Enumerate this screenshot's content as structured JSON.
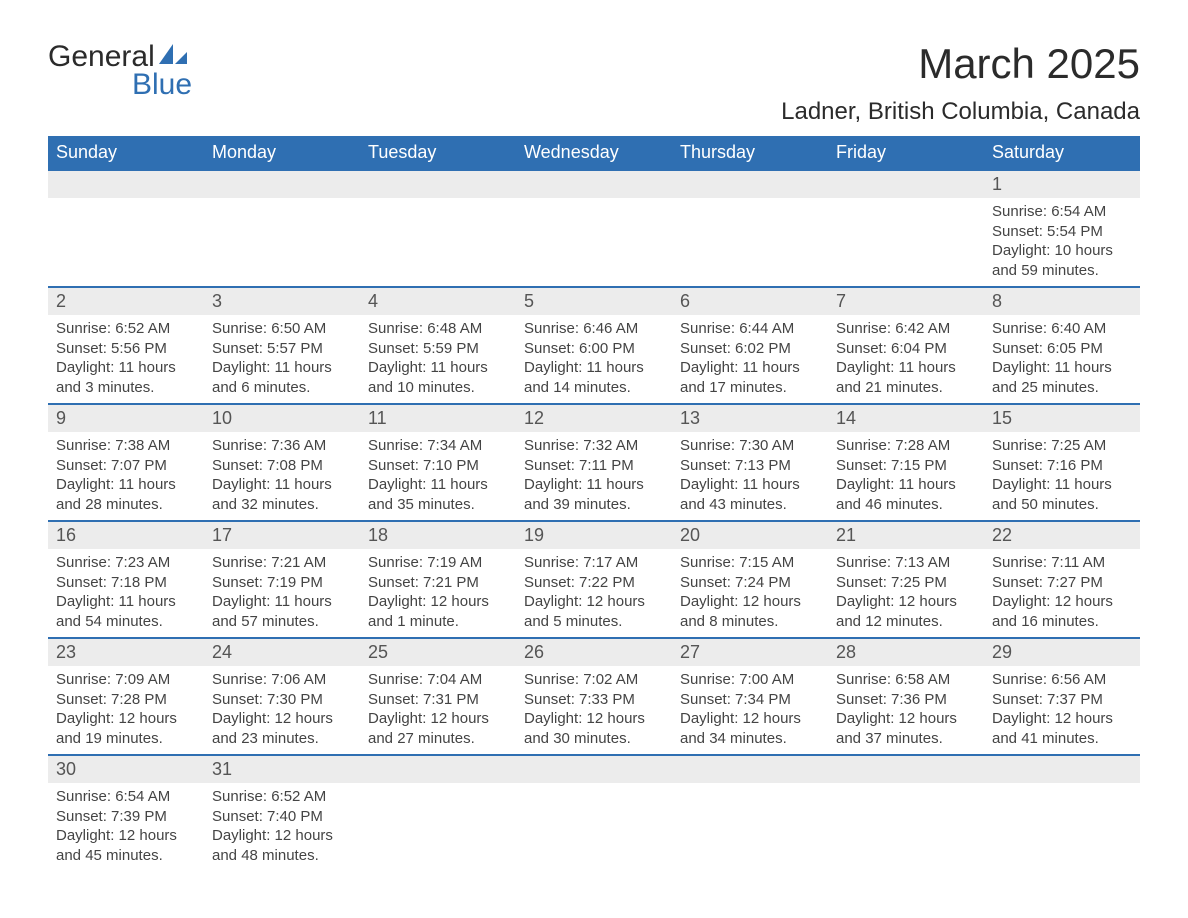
{
  "brand": {
    "name_top": "General",
    "name_bottom": "Blue",
    "accent_color": "#2f6fb2"
  },
  "title": {
    "month": "March 2025",
    "location": "Ladner, British Columbia, Canada"
  },
  "colors": {
    "header_bg": "#2f6fb2",
    "header_text": "#ffffff",
    "daynum_bg": "#ececec",
    "row_divider": "#2f6fb2",
    "body_text": "#444444",
    "page_bg": "#ffffff"
  },
  "typography": {
    "month_fontsize_pt": 32,
    "location_fontsize_pt": 18,
    "header_fontsize_pt": 14,
    "daynum_fontsize_pt": 14,
    "body_fontsize_pt": 11
  },
  "calendar": {
    "type": "table",
    "columns": [
      "Sunday",
      "Monday",
      "Tuesday",
      "Wednesday",
      "Thursday",
      "Friday",
      "Saturday"
    ],
    "weeks": [
      [
        null,
        null,
        null,
        null,
        null,
        null,
        {
          "d": "1",
          "sr": "Sunrise: 6:54 AM",
          "ss": "Sunset: 5:54 PM",
          "dl": "Daylight: 10 hours and 59 minutes."
        }
      ],
      [
        {
          "d": "2",
          "sr": "Sunrise: 6:52 AM",
          "ss": "Sunset: 5:56 PM",
          "dl": "Daylight: 11 hours and 3 minutes."
        },
        {
          "d": "3",
          "sr": "Sunrise: 6:50 AM",
          "ss": "Sunset: 5:57 PM",
          "dl": "Daylight: 11 hours and 6 minutes."
        },
        {
          "d": "4",
          "sr": "Sunrise: 6:48 AM",
          "ss": "Sunset: 5:59 PM",
          "dl": "Daylight: 11 hours and 10 minutes."
        },
        {
          "d": "5",
          "sr": "Sunrise: 6:46 AM",
          "ss": "Sunset: 6:00 PM",
          "dl": "Daylight: 11 hours and 14 minutes."
        },
        {
          "d": "6",
          "sr": "Sunrise: 6:44 AM",
          "ss": "Sunset: 6:02 PM",
          "dl": "Daylight: 11 hours and 17 minutes."
        },
        {
          "d": "7",
          "sr": "Sunrise: 6:42 AM",
          "ss": "Sunset: 6:04 PM",
          "dl": "Daylight: 11 hours and 21 minutes."
        },
        {
          "d": "8",
          "sr": "Sunrise: 6:40 AM",
          "ss": "Sunset: 6:05 PM",
          "dl": "Daylight: 11 hours and 25 minutes."
        }
      ],
      [
        {
          "d": "9",
          "sr": "Sunrise: 7:38 AM",
          "ss": "Sunset: 7:07 PM",
          "dl": "Daylight: 11 hours and 28 minutes."
        },
        {
          "d": "10",
          "sr": "Sunrise: 7:36 AM",
          "ss": "Sunset: 7:08 PM",
          "dl": "Daylight: 11 hours and 32 minutes."
        },
        {
          "d": "11",
          "sr": "Sunrise: 7:34 AM",
          "ss": "Sunset: 7:10 PM",
          "dl": "Daylight: 11 hours and 35 minutes."
        },
        {
          "d": "12",
          "sr": "Sunrise: 7:32 AM",
          "ss": "Sunset: 7:11 PM",
          "dl": "Daylight: 11 hours and 39 minutes."
        },
        {
          "d": "13",
          "sr": "Sunrise: 7:30 AM",
          "ss": "Sunset: 7:13 PM",
          "dl": "Daylight: 11 hours and 43 minutes."
        },
        {
          "d": "14",
          "sr": "Sunrise: 7:28 AM",
          "ss": "Sunset: 7:15 PM",
          "dl": "Daylight: 11 hours and 46 minutes."
        },
        {
          "d": "15",
          "sr": "Sunrise: 7:25 AM",
          "ss": "Sunset: 7:16 PM",
          "dl": "Daylight: 11 hours and 50 minutes."
        }
      ],
      [
        {
          "d": "16",
          "sr": "Sunrise: 7:23 AM",
          "ss": "Sunset: 7:18 PM",
          "dl": "Daylight: 11 hours and 54 minutes."
        },
        {
          "d": "17",
          "sr": "Sunrise: 7:21 AM",
          "ss": "Sunset: 7:19 PM",
          "dl": "Daylight: 11 hours and 57 minutes."
        },
        {
          "d": "18",
          "sr": "Sunrise: 7:19 AM",
          "ss": "Sunset: 7:21 PM",
          "dl": "Daylight: 12 hours and 1 minute."
        },
        {
          "d": "19",
          "sr": "Sunrise: 7:17 AM",
          "ss": "Sunset: 7:22 PM",
          "dl": "Daylight: 12 hours and 5 minutes."
        },
        {
          "d": "20",
          "sr": "Sunrise: 7:15 AM",
          "ss": "Sunset: 7:24 PM",
          "dl": "Daylight: 12 hours and 8 minutes."
        },
        {
          "d": "21",
          "sr": "Sunrise: 7:13 AM",
          "ss": "Sunset: 7:25 PM",
          "dl": "Daylight: 12 hours and 12 minutes."
        },
        {
          "d": "22",
          "sr": "Sunrise: 7:11 AM",
          "ss": "Sunset: 7:27 PM",
          "dl": "Daylight: 12 hours and 16 minutes."
        }
      ],
      [
        {
          "d": "23",
          "sr": "Sunrise: 7:09 AM",
          "ss": "Sunset: 7:28 PM",
          "dl": "Daylight: 12 hours and 19 minutes."
        },
        {
          "d": "24",
          "sr": "Sunrise: 7:06 AM",
          "ss": "Sunset: 7:30 PM",
          "dl": "Daylight: 12 hours and 23 minutes."
        },
        {
          "d": "25",
          "sr": "Sunrise: 7:04 AM",
          "ss": "Sunset: 7:31 PM",
          "dl": "Daylight: 12 hours and 27 minutes."
        },
        {
          "d": "26",
          "sr": "Sunrise: 7:02 AM",
          "ss": "Sunset: 7:33 PM",
          "dl": "Daylight: 12 hours and 30 minutes."
        },
        {
          "d": "27",
          "sr": "Sunrise: 7:00 AM",
          "ss": "Sunset: 7:34 PM",
          "dl": "Daylight: 12 hours and 34 minutes."
        },
        {
          "d": "28",
          "sr": "Sunrise: 6:58 AM",
          "ss": "Sunset: 7:36 PM",
          "dl": "Daylight: 12 hours and 37 minutes."
        },
        {
          "d": "29",
          "sr": "Sunrise: 6:56 AM",
          "ss": "Sunset: 7:37 PM",
          "dl": "Daylight: 12 hours and 41 minutes."
        }
      ],
      [
        {
          "d": "30",
          "sr": "Sunrise: 6:54 AM",
          "ss": "Sunset: 7:39 PM",
          "dl": "Daylight: 12 hours and 45 minutes."
        },
        {
          "d": "31",
          "sr": "Sunrise: 6:52 AM",
          "ss": "Sunset: 7:40 PM",
          "dl": "Daylight: 12 hours and 48 minutes."
        },
        null,
        null,
        null,
        null,
        null
      ]
    ]
  }
}
